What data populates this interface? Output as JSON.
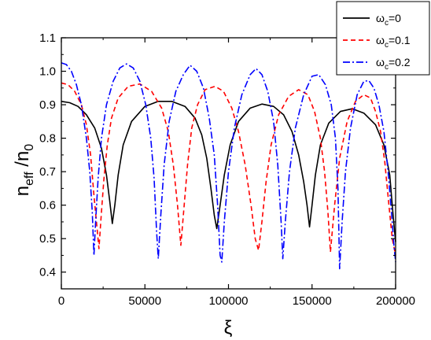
{
  "chart_data": {
    "type": "line",
    "xlabel": "ξ",
    "ylabel": {
      "main": "n",
      "sub1": "eff",
      "mid": " /n",
      "sub2": "0"
    },
    "xlim": [
      0,
      200000
    ],
    "ylim": [
      0.35,
      1.1
    ],
    "x_ticks": [
      0,
      50000,
      100000,
      150000,
      200000
    ],
    "x_tick_labels": [
      "0",
      "50000",
      "100000",
      "150000",
      "200000"
    ],
    "y_ticks": [
      0.4,
      0.5,
      0.6,
      0.7,
      0.8,
      0.9,
      1.0,
      1.1
    ],
    "y_tick_labels": [
      "0.4",
      "0.5",
      "0.6",
      "0.7",
      "0.8",
      "0.9",
      "1.0",
      "1.1"
    ],
    "grid": false,
    "legend_position": "top-right",
    "series": [
      {
        "legend": {
          "sym": "ω",
          "sub": "c",
          "rest": "=0"
        },
        "color": "#000000",
        "dash": "solid",
        "x": [
          0,
          5000,
          10000,
          15000,
          20000,
          24000,
          27000,
          29000,
          30500,
          32000,
          34000,
          37000,
          42000,
          50000,
          58000,
          66000,
          74000,
          80000,
          84000,
          87000,
          89500,
          91500,
          93000,
          95000,
          97500,
          101000,
          106000,
          113000,
          120000,
          127000,
          133000,
          138000,
          142000,
          145000,
          147000,
          148500,
          150000,
          152000,
          155000,
          160000,
          167000,
          174000,
          181000,
          188000,
          193000,
          196500,
          198500,
          200000
        ],
        "y": [
          0.91,
          0.906,
          0.895,
          0.87,
          0.83,
          0.77,
          0.69,
          0.61,
          0.545,
          0.6,
          0.69,
          0.78,
          0.85,
          0.895,
          0.91,
          0.91,
          0.895,
          0.86,
          0.81,
          0.74,
          0.65,
          0.57,
          0.53,
          0.6,
          0.69,
          0.78,
          0.85,
          0.89,
          0.902,
          0.895,
          0.87,
          0.82,
          0.75,
          0.67,
          0.6,
          0.535,
          0.6,
          0.69,
          0.78,
          0.845,
          0.88,
          0.888,
          0.875,
          0.84,
          0.78,
          0.69,
          0.57,
          0.49
        ]
      },
      {
        "legend": {
          "sym": "ω",
          "sub": "c",
          "rest": "=0.1"
        },
        "color": "#ff0000",
        "dash": "6,4",
        "x": [
          0,
          4000,
          8000,
          12000,
          15000,
          17500,
          19500,
          21000,
          22500,
          24000,
          25500,
          27500,
          30000,
          34000,
          40000,
          47000,
          54000,
          60000,
          64000,
          67000,
          69500,
          71500,
          73500,
          75500,
          78000,
          81500,
          86000,
          92000,
          97000,
          102000,
          106000,
          110000,
          113500,
          116000,
          118000,
          120000,
          122500,
          125500,
          130000,
          136000,
          142000,
          147500,
          151500,
          155000,
          157500,
          159500,
          161000,
          163500,
          166500,
          171000,
          176000,
          181000,
          185000,
          188000,
          191000,
          193500,
          196000,
          198000,
          200000
        ],
        "y": [
          0.965,
          0.96,
          0.94,
          0.9,
          0.84,
          0.75,
          0.63,
          0.55,
          0.47,
          0.58,
          0.68,
          0.78,
          0.86,
          0.92,
          0.955,
          0.962,
          0.94,
          0.89,
          0.82,
          0.72,
          0.6,
          0.48,
          0.6,
          0.72,
          0.83,
          0.9,
          0.945,
          0.955,
          0.94,
          0.89,
          0.82,
          0.72,
          0.6,
          0.5,
          0.465,
          0.55,
          0.67,
          0.78,
          0.87,
          0.925,
          0.945,
          0.93,
          0.88,
          0.8,
          0.7,
          0.58,
          0.46,
          0.6,
          0.74,
          0.85,
          0.91,
          0.93,
          0.92,
          0.88,
          0.82,
          0.73,
          0.6,
          0.5,
          0.45
        ]
      },
      {
        "legend": {
          "sym": "ω",
          "sub": "c",
          "rest": "=0.2"
        },
        "color": "#0000ff",
        "dash": "9,3,2,3",
        "x": [
          0,
          3000,
          6000,
          9000,
          12000,
          15000,
          17000,
          18500,
          19500,
          20500,
          22000,
          24000,
          27000,
          31000,
          35000,
          39000,
          43000,
          47000,
          50500,
          53500,
          55500,
          57000,
          58000,
          59500,
          61500,
          64500,
          68500,
          73000,
          77000,
          81000,
          85000,
          88500,
          91500,
          93500,
          95000,
          96000,
          97500,
          100000,
          103500,
          108000,
          113000,
          116500,
          120000,
          123500,
          127000,
          129500,
          131500,
          132500,
          134000,
          136500,
          140000,
          145000,
          150000,
          154000,
          158000,
          161500,
          164000,
          165500,
          166500,
          168000,
          170000,
          173000,
          177000,
          181000,
          184000,
          187000,
          190000,
          193000,
          195500,
          197500,
          199000,
          200000
        ],
        "y": [
          1.025,
          1.02,
          1.0,
          0.96,
          0.9,
          0.8,
          0.7,
          0.58,
          0.45,
          0.55,
          0.68,
          0.8,
          0.9,
          0.97,
          1.01,
          1.022,
          1.01,
          0.97,
          0.9,
          0.8,
          0.68,
          0.52,
          0.44,
          0.57,
          0.72,
          0.85,
          0.94,
          0.99,
          1.018,
          1.0,
          0.95,
          0.86,
          0.75,
          0.6,
          0.45,
          0.43,
          0.55,
          0.7,
          0.83,
          0.93,
          0.99,
          1.008,
          0.99,
          0.94,
          0.85,
          0.72,
          0.55,
          0.44,
          0.55,
          0.7,
          0.83,
          0.93,
          0.985,
          0.99,
          0.96,
          0.9,
          0.8,
          0.65,
          0.41,
          0.55,
          0.7,
          0.83,
          0.93,
          0.97,
          0.972,
          0.95,
          0.9,
          0.82,
          0.7,
          0.58,
          0.48,
          0.43
        ]
      }
    ]
  }
}
